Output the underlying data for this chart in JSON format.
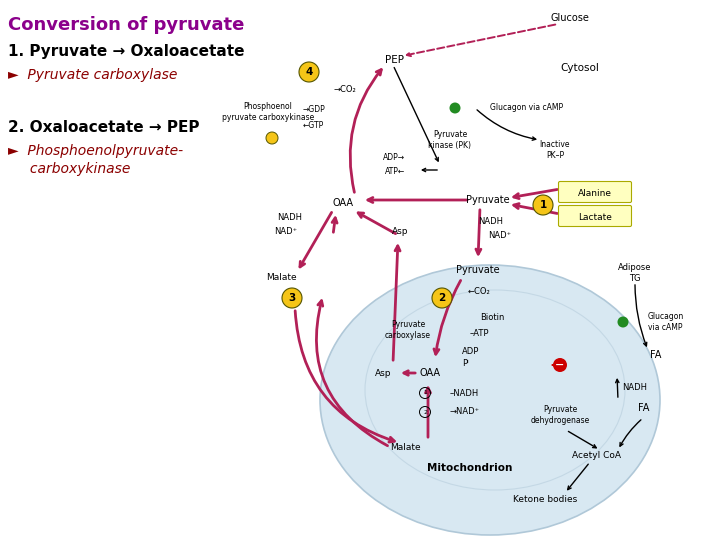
{
  "title": "Conversion of pyruvate",
  "title_color": "#8B008B",
  "title_fontsize": 13,
  "line1_text": "1. Pyruvate → Oxaloacetate",
  "line1_color": "#000000",
  "line1_fontsize": 11,
  "line2a": "►  Pyruvate carboxylase",
  "line2_color": "#8B0000",
  "line2_fontsize": 10,
  "line3_text": "2. Oxaloacetate → PEP",
  "line3_color": "#000000",
  "line3_fontsize": 11,
  "line4a": "►  Phosphoenolpyruvate-",
  "line4b": "     carboxykinase",
  "line4_color": "#8B0000",
  "line4_fontsize": 10,
  "bg_color": "#FFFFFF",
  "diagram_bg": "#d8e8f2",
  "crimson": "#B22057",
  "yellow_circle": "#F5C518",
  "black": "#000000",
  "text_small": 6,
  "text_med": 7,
  "text_large": 8
}
